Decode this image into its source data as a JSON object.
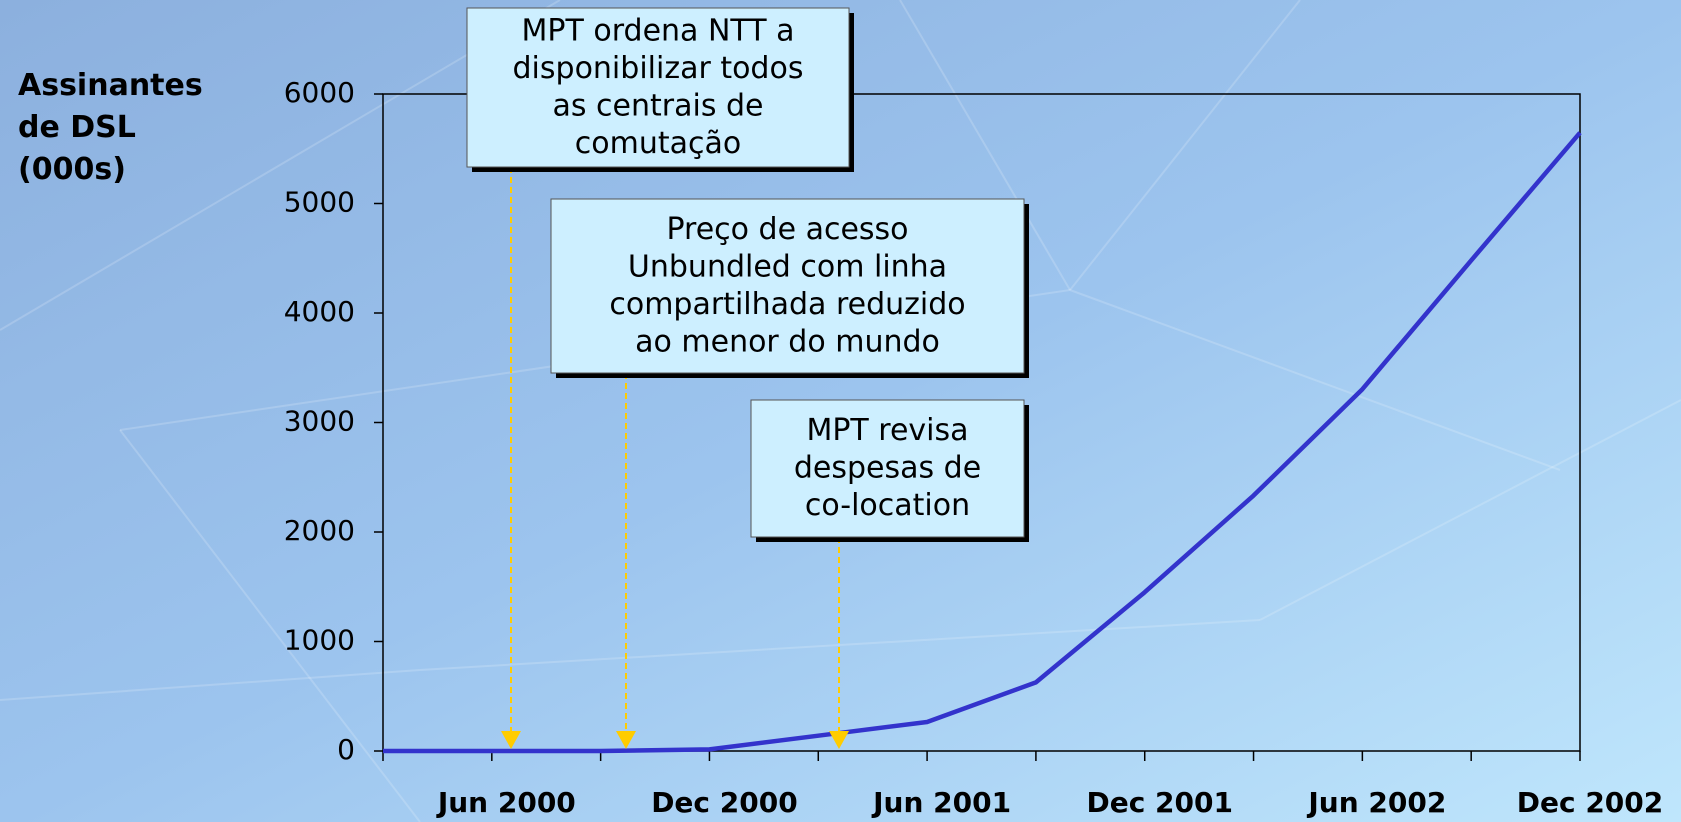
{
  "chart_data": {
    "type": "line",
    "y_label": [
      "Assinantes",
      "de DSL",
      "(000s)"
    ],
    "categories": [
      null,
      "Jun 2000",
      null,
      "Dec 2000",
      null,
      "Jun 2001",
      null,
      "Dec 2001",
      null,
      "Jun 2002",
      null,
      "Dec 2002"
    ],
    "series": [
      {
        "name": "DSL",
        "color": "#3333cc",
        "values": [
          0,
          0,
          0,
          15,
          140,
          265,
          627,
          1450,
          2333,
          3304,
          4480,
          5647
        ]
      }
    ],
    "ylim": [
      0,
      6000
    ],
    "yticks": [
      0,
      1000,
      2000,
      3000,
      4000,
      5000,
      6000
    ],
    "grid": false,
    "annotations": [
      {
        "lines": [
          "MPT ordena NTT a",
          "disponibilizar todos",
          "as centrais de",
          "comutação"
        ]
      },
      {
        "lines": [
          "Preço de acesso",
          "Unbundled com linha",
          "compartilhada reduzido",
          "ao menor do mundo"
        ]
      },
      {
        "lines": [
          "MPT revisa",
          "despesas de",
          "co-location"
        ]
      }
    ]
  }
}
